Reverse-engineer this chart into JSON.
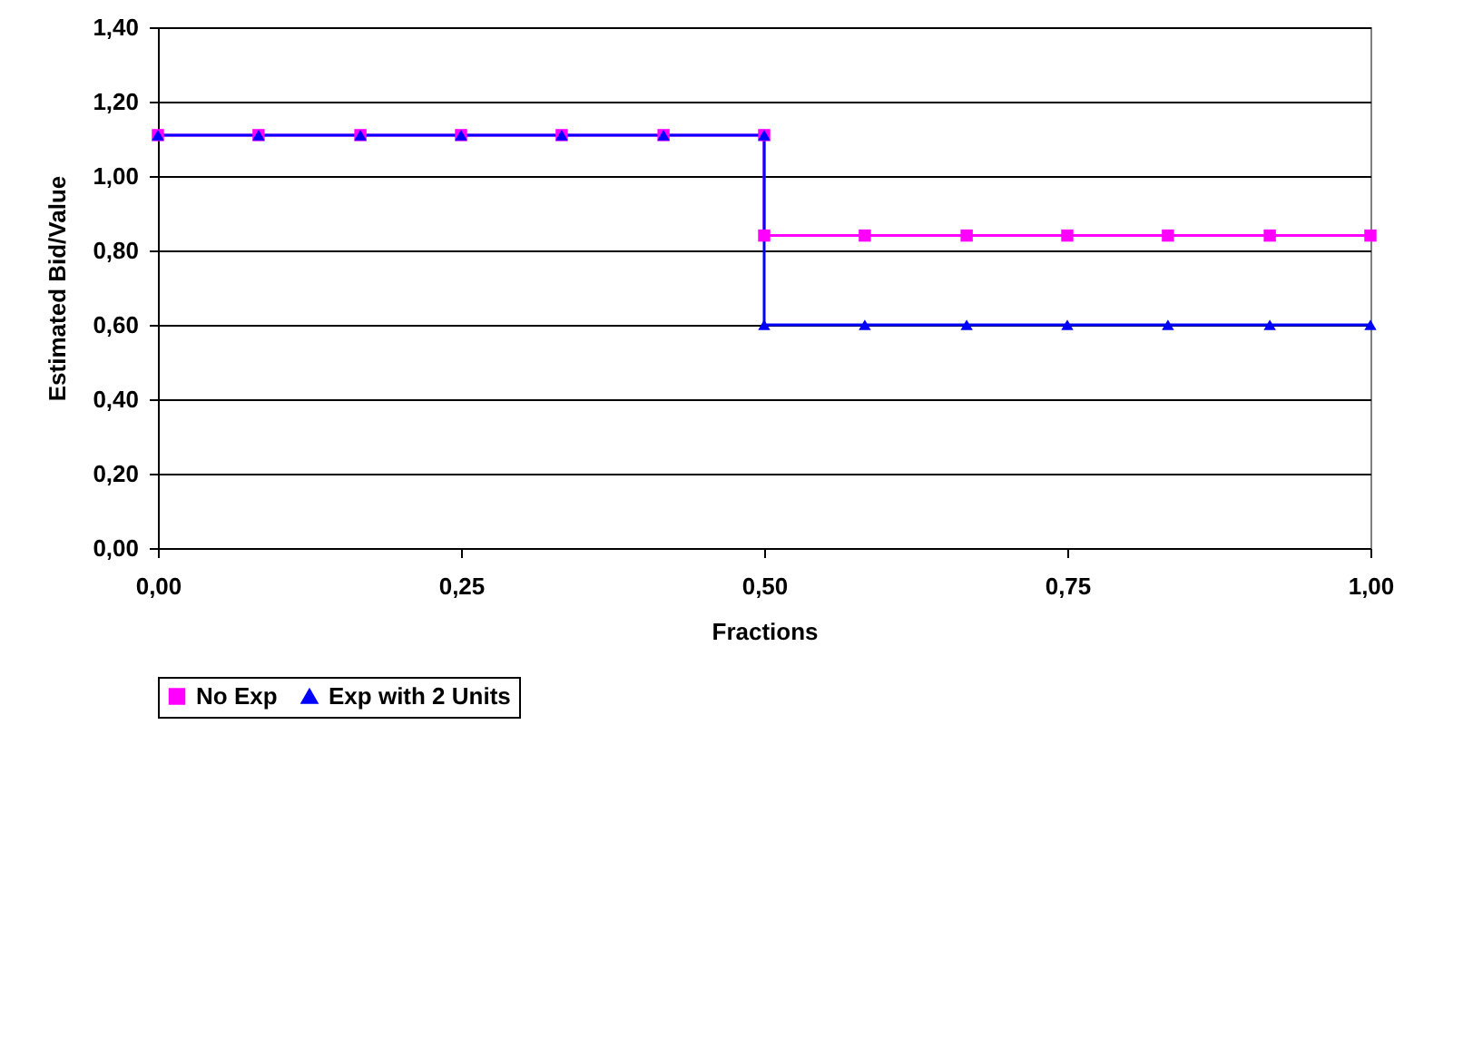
{
  "chart_data": {
    "type": "line",
    "xlabel": "Fractions",
    "ylabel": "Estimated Bid/Value",
    "xlim": [
      0,
      1
    ],
    "xticks": [
      {
        "value": 0,
        "label": "0,00"
      },
      {
        "value": 0.25,
        "label": "0,25"
      },
      {
        "value": 0.5,
        "label": "0,50"
      },
      {
        "value": 0.75,
        "label": "0,75"
      },
      {
        "value": 1,
        "label": "1,00"
      }
    ],
    "ylim": [
      0,
      1.4
    ],
    "yticks": [
      {
        "value": 0,
        "label": "0,00"
      },
      {
        "value": 0.2,
        "label": "0,20"
      },
      {
        "value": 0.4,
        "label": "0,40"
      },
      {
        "value": 0.6,
        "label": "0,60"
      },
      {
        "value": 0.8,
        "label": "0,80"
      },
      {
        "value": 1,
        "label": "1,00"
      },
      {
        "value": 1.2,
        "label": "1,20"
      },
      {
        "value": 1.4,
        "label": "1,40"
      }
    ],
    "grid": "y",
    "legend": "bottom",
    "line_style": "solid",
    "series": [
      {
        "name": "No Exp",
        "color": "#ff00ff",
        "marker": "square",
        "x": [
          0,
          0.083,
          0.167,
          0.25,
          0.333,
          0.417,
          0.5,
          0.5,
          0.583,
          0.667,
          0.75,
          0.833,
          0.917,
          1
        ],
        "values": [
          1.11,
          1.11,
          1.11,
          1.11,
          1.11,
          1.11,
          1.11,
          0.84,
          0.84,
          0.84,
          0.84,
          0.84,
          0.84,
          0.84
        ]
      },
      {
        "name": "Exp with 2 Units",
        "color": "#0000ff",
        "marker": "triangle",
        "x": [
          0,
          0.083,
          0.167,
          0.25,
          0.333,
          0.417,
          0.5,
          0.5,
          0.583,
          0.667,
          0.75,
          0.833,
          0.917,
          1
        ],
        "values": [
          1.11,
          1.11,
          1.11,
          1.11,
          1.11,
          1.11,
          1.11,
          0.6,
          0.6,
          0.6,
          0.6,
          0.6,
          0.6,
          0.6
        ]
      }
    ]
  }
}
